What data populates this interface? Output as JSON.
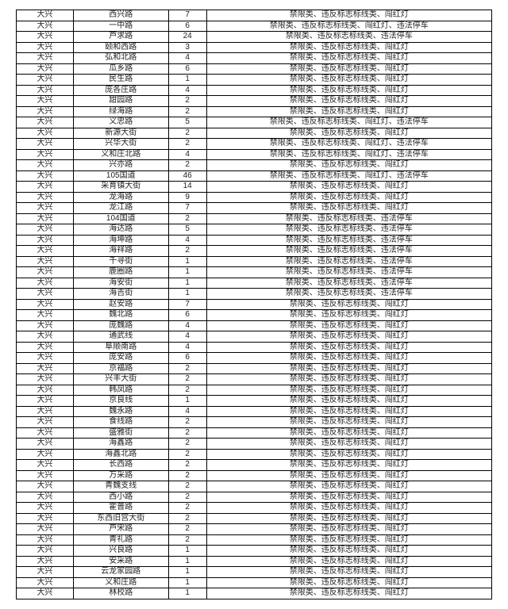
{
  "table": {
    "col_widths": [
      "12%",
      "20%",
      "8%",
      "60%"
    ],
    "rows": [
      [
        "大兴",
        "西兴路",
        "7",
        "禁限类、违反标志标线类、闯红灯"
      ],
      [
        "大兴",
        "一中路",
        "6",
        "禁限类、违反标志标线类、闯红灯、违法停车"
      ],
      [
        "大兴",
        "芦求路",
        "24",
        "禁限类、违反标志标线类、违法停车"
      ],
      [
        "大兴",
        "颐和西路",
        "3",
        "禁限类、违反标志标线类、闯红灯"
      ],
      [
        "大兴",
        "弘和北路",
        "4",
        "禁限类、违反标志标线类、闯红灯"
      ],
      [
        "大兴",
        "瓜乡路",
        "6",
        "禁限类、违反标志标线类、闯红灯"
      ],
      [
        "大兴",
        "民生路",
        "1",
        "禁限类、违反标志标线类、闯红灯"
      ],
      [
        "大兴",
        "庞各庄路",
        "4",
        "禁限类、违反标志标线类、闯红灯"
      ],
      [
        "大兴",
        "甜园路",
        "2",
        "禁限类、违反标志标线类、闯红灯"
      ],
      [
        "大兴",
        "绿海路",
        "2",
        "禁限类、违反标志标线类、闯红灯"
      ],
      [
        "大兴",
        "义忠路",
        "5",
        "禁限类、违反标志标线类、闯红灯、违法停车"
      ],
      [
        "大兴",
        "新源大街",
        "2",
        "禁限类、违反标志标线类、闯红灯"
      ],
      [
        "大兴",
        "兴华大街",
        "2",
        "禁限类、违反标志标线类、闯红灯、违法停车"
      ],
      [
        "大兴",
        "义和庄北路",
        "4",
        "禁限类、违反标志标线类、闯红灯、违法停车"
      ],
      [
        "大兴",
        "兴亦路",
        "2",
        "禁限类、违反标志标线类、闯红灯"
      ],
      [
        "大兴",
        "105国道",
        "46",
        "禁限类、违反标志标线类、闯红灯、违法停车"
      ],
      [
        "大兴",
        "采育镇大街",
        "14",
        "禁限类、违反标志标线类、闯红灯"
      ],
      [
        "大兴",
        "龙海路",
        "9",
        "禁限类、违反标志标线类、闯红灯"
      ],
      [
        "大兴",
        "龙江路",
        "7",
        "禁限类、违反标志标线类、闯红灯"
      ],
      [
        "大兴",
        "104国道",
        "2",
        "禁限类、违反标志标线类、违法停车"
      ],
      [
        "大兴",
        "海达路",
        "5",
        "禁限类、违反标志标线类、违法停车"
      ],
      [
        "大兴",
        "海坤路",
        "4",
        "禁限类、违反标志标线类、违法停车"
      ],
      [
        "大兴",
        "海祥路",
        "2",
        "禁限类、违反标志标线类、违法停车"
      ],
      [
        "大兴",
        "千寻街",
        "1",
        "禁限类、违反标志标线类、违法停车"
      ],
      [
        "大兴",
        "鹿圈路",
        "1",
        "禁限类、违反标志标线类、违法停车"
      ],
      [
        "大兴",
        "海安街",
        "1",
        "禁限类、违反标志标线类、违法停车"
      ],
      [
        "大兴",
        "海吉街",
        "1",
        "禁限类、违反标志标线类、违法停车"
      ],
      [
        "大兴",
        "赵安路",
        "7",
        "禁限类、违反标志标线类、闯红灯"
      ],
      [
        "大兴",
        "魏北路",
        "6",
        "禁限类、违反标志标线类、闯红灯"
      ],
      [
        "大兴",
        "庞魏路",
        "4",
        "禁限类、违反标志标线类、闯红灯"
      ],
      [
        "大兴",
        "通武线",
        "4",
        "禁限类、违反标志标线类、闯红灯"
      ],
      [
        "大兴",
        "阜顺南路",
        "4",
        "禁限类、违反标志标线类、闯红灯"
      ],
      [
        "大兴",
        "庞安路",
        "6",
        "禁限类、违反标志标线类、闯红灯"
      ],
      [
        "大兴",
        "京福路",
        "2",
        "禁限类、违反标志标线类、闯红灯"
      ],
      [
        "大兴",
        "兴丰大街",
        "2",
        "禁限类、违反标志标线类、闯红灯"
      ],
      [
        "大兴",
        "韩凤路",
        "2",
        "禁限类、违反标志标线类、闯红灯"
      ],
      [
        "大兴",
        "京良线",
        "1",
        "禁限类、违反标志标线类、闯红灯"
      ],
      [
        "大兴",
        "魏永路",
        "4",
        "禁限类、违反标志标线类、闯红灯"
      ],
      [
        "大兴",
        "食线路",
        "2",
        "禁限类、违反标志标线类、闯红灯"
      ],
      [
        "大兴",
        "盛雅街",
        "2",
        "禁限类、违反标志标线类、闯红灯"
      ],
      [
        "大兴",
        "海鑫路",
        "2",
        "禁限类、违反标志标线类、闯红灯"
      ],
      [
        "大兴",
        "海鑫北路",
        "2",
        "禁限类、违反标志标线类、闯红灯"
      ],
      [
        "大兴",
        "长西路",
        "2",
        "禁限类、违反标志标线类、闯红灯"
      ],
      [
        "大兴",
        "万采路",
        "2",
        "禁限类、违反标志标线类、闯红灯"
      ],
      [
        "大兴",
        "青魏支线",
        "2",
        "禁限类、违反标志标线类、闯红灯"
      ],
      [
        "大兴",
        "西小路",
        "2",
        "禁限类、违反标志标线类、闯红灯"
      ],
      [
        "大兴",
        "霍普路",
        "2",
        "禁限类、违反标志标线类、闯红灯"
      ],
      [
        "大兴",
        "东西旧宫大街",
        "2",
        "禁限类、违反标志标线类、闯红灯"
      ],
      [
        "大兴",
        "芦宋路",
        "2",
        "禁限类、违反标志标线类、闯红灯"
      ],
      [
        "大兴",
        "青礼路",
        "2",
        "禁限类、违反标志标线类、闯红灯"
      ],
      [
        "大兴",
        "兴良路",
        "1",
        "禁限类、违反标志标线类、闯红灯"
      ],
      [
        "大兴",
        "安采路",
        "1",
        "禁限类、违反标志标线类、闯红灯"
      ],
      [
        "大兴",
        "云龙家园路",
        "1",
        "禁限类、违反标志标线类、闯红灯"
      ],
      [
        "大兴",
        "义和庄路",
        "1",
        "禁限类、违反标志标线类、闯红灯"
      ],
      [
        "大兴",
        "林校路",
        "1",
        "禁限类、违反标志标线类、闯红灯"
      ]
    ]
  }
}
